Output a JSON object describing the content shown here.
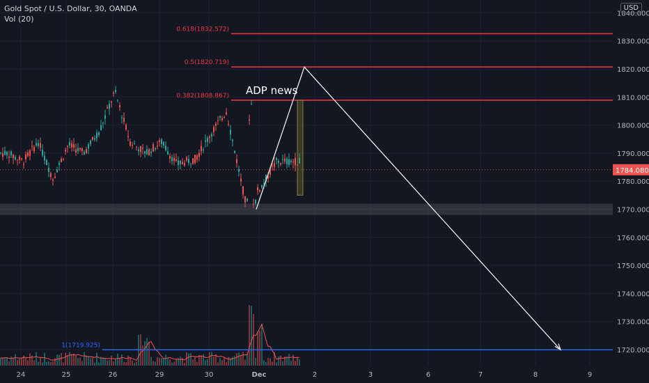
{
  "header": {
    "title": "Gold Spot / U.S. Dollar, 30, OANDA",
    "indicator": "Vol (20)",
    "currency_badge": "USD"
  },
  "price_axis": {
    "ticks": [
      "1840.000",
      "1830.000",
      "1820.000",
      "1810.000",
      "1800.000",
      "1790.000",
      "1780.000",
      "1770.000",
      "1760.000",
      "1750.000",
      "1740.000",
      "1730.000",
      "1720.000"
    ],
    "current_price_label": "1784.080"
  },
  "time_axis": {
    "ticks": [
      "24",
      "25",
      "26",
      "29",
      "30",
      "Dec",
      "2",
      "3",
      "6",
      "7",
      "8",
      "9"
    ]
  },
  "fib_levels": [
    {
      "label": "0.618(1832.572)",
      "price": 1832.572,
      "color": "#f23645"
    },
    {
      "label": "0.5(1820.719)",
      "price": 1820.719,
      "color": "#f23645"
    },
    {
      "label": "0.382(1808.867)",
      "price": 1808.867,
      "color": "#f23645"
    },
    {
      "label": "1(1719.925)",
      "price": 1719.925,
      "color": "#2962ff"
    }
  ],
  "annotation": {
    "text": "ADP news"
  },
  "colors": {
    "background": "#131722",
    "up": "#26a69a",
    "down": "#ef5350",
    "fib": "#f23645",
    "target": "#2962ff",
    "projection": "#ffffff"
  },
  "chart_data": {
    "type": "candlestick",
    "symbol": "Gold Spot / U.S. Dollar",
    "ylim": [
      1717,
      1843
    ],
    "current_price": 1784.08,
    "support_zone": [
      1768,
      1772
    ],
    "projection_path": [
      {
        "x": "Dec",
        "y": 1770
      },
      {
        "x": "2",
        "y": 1820.7
      },
      {
        "x": "8",
        "y": 1719.9
      }
    ],
    "price_path": [
      {
        "x": "24",
        "y": 1790
      },
      {
        "x": "24",
        "y": 1787
      },
      {
        "x": "24",
        "y": 1794
      },
      {
        "x": "25",
        "y": 1781
      },
      {
        "x": "25",
        "y": 1793
      },
      {
        "x": "25",
        "y": 1790
      },
      {
        "x": "26",
        "y": 1798
      },
      {
        "x": "26",
        "y": 1812
      },
      {
        "x": "26",
        "y": 1794
      },
      {
        "x": "29",
        "y": 1790
      },
      {
        "x": "29",
        "y": 1794
      },
      {
        "x": "29",
        "y": 1786
      },
      {
        "x": "30",
        "y": 1788
      },
      {
        "x": "30",
        "y": 1797
      },
      {
        "x": "30",
        "y": 1805
      },
      {
        "x": "Dec",
        "y": 1772
      },
      {
        "x": "Dec",
        "y": 1778
      },
      {
        "x": "Dec",
        "y": 1787
      }
    ]
  }
}
